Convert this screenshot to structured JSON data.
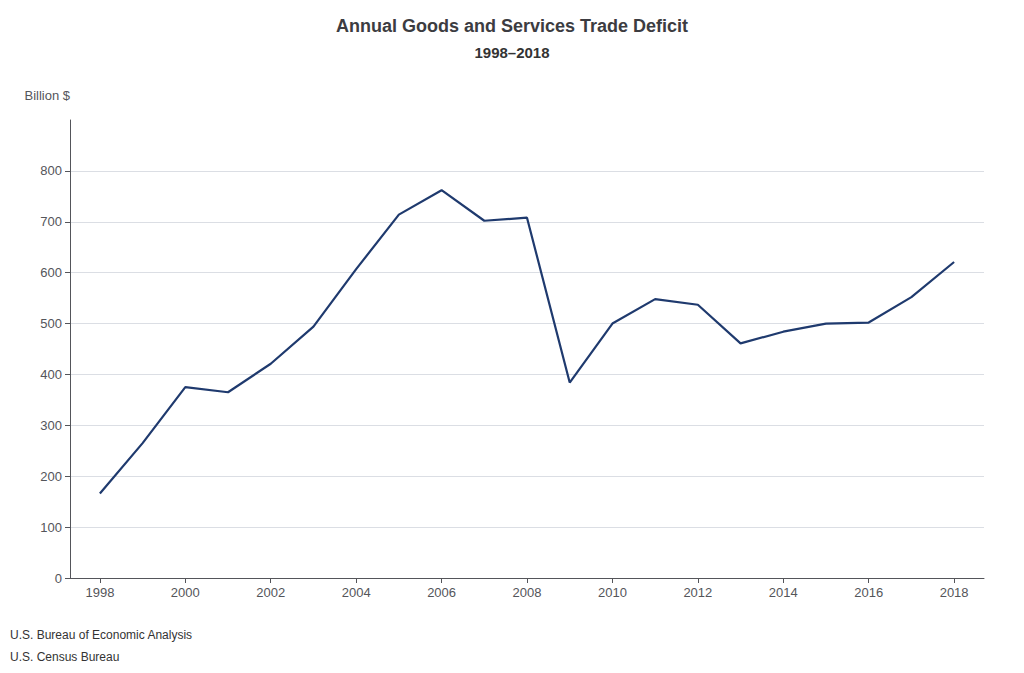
{
  "chart_data": {
    "type": "line",
    "title": "Annual Goods and Services Trade Deficit",
    "subtitle": "1998–2018",
    "ylabel": "Billion $",
    "annotations": [
      "U.S. Bureau of Economic Analysis",
      "U.S. Census Bureau"
    ],
    "x": [
      1998,
      1999,
      2000,
      2001,
      2002,
      2003,
      2004,
      2005,
      2006,
      2007,
      2008,
      2009,
      2010,
      2011,
      2012,
      2013,
      2014,
      2015,
      2016,
      2017,
      2018
    ],
    "values": [
      166,
      265,
      375,
      365,
      421,
      494,
      607,
      714,
      762,
      702,
      708,
      384,
      500,
      548,
      537,
      461,
      484,
      500,
      502,
      552,
      621
    ],
    "color": "#1F3A6E",
    "xlim": [
      1997.3,
      2018.7
    ],
    "xticks": [
      1998,
      2000,
      2002,
      2004,
      2006,
      2008,
      2010,
      2012,
      2014,
      2016,
      2018
    ],
    "ylim": [
      0,
      900
    ],
    "yticks": [
      0,
      100,
      200,
      300,
      400,
      500,
      600,
      700,
      800
    ],
    "grid": true
  }
}
